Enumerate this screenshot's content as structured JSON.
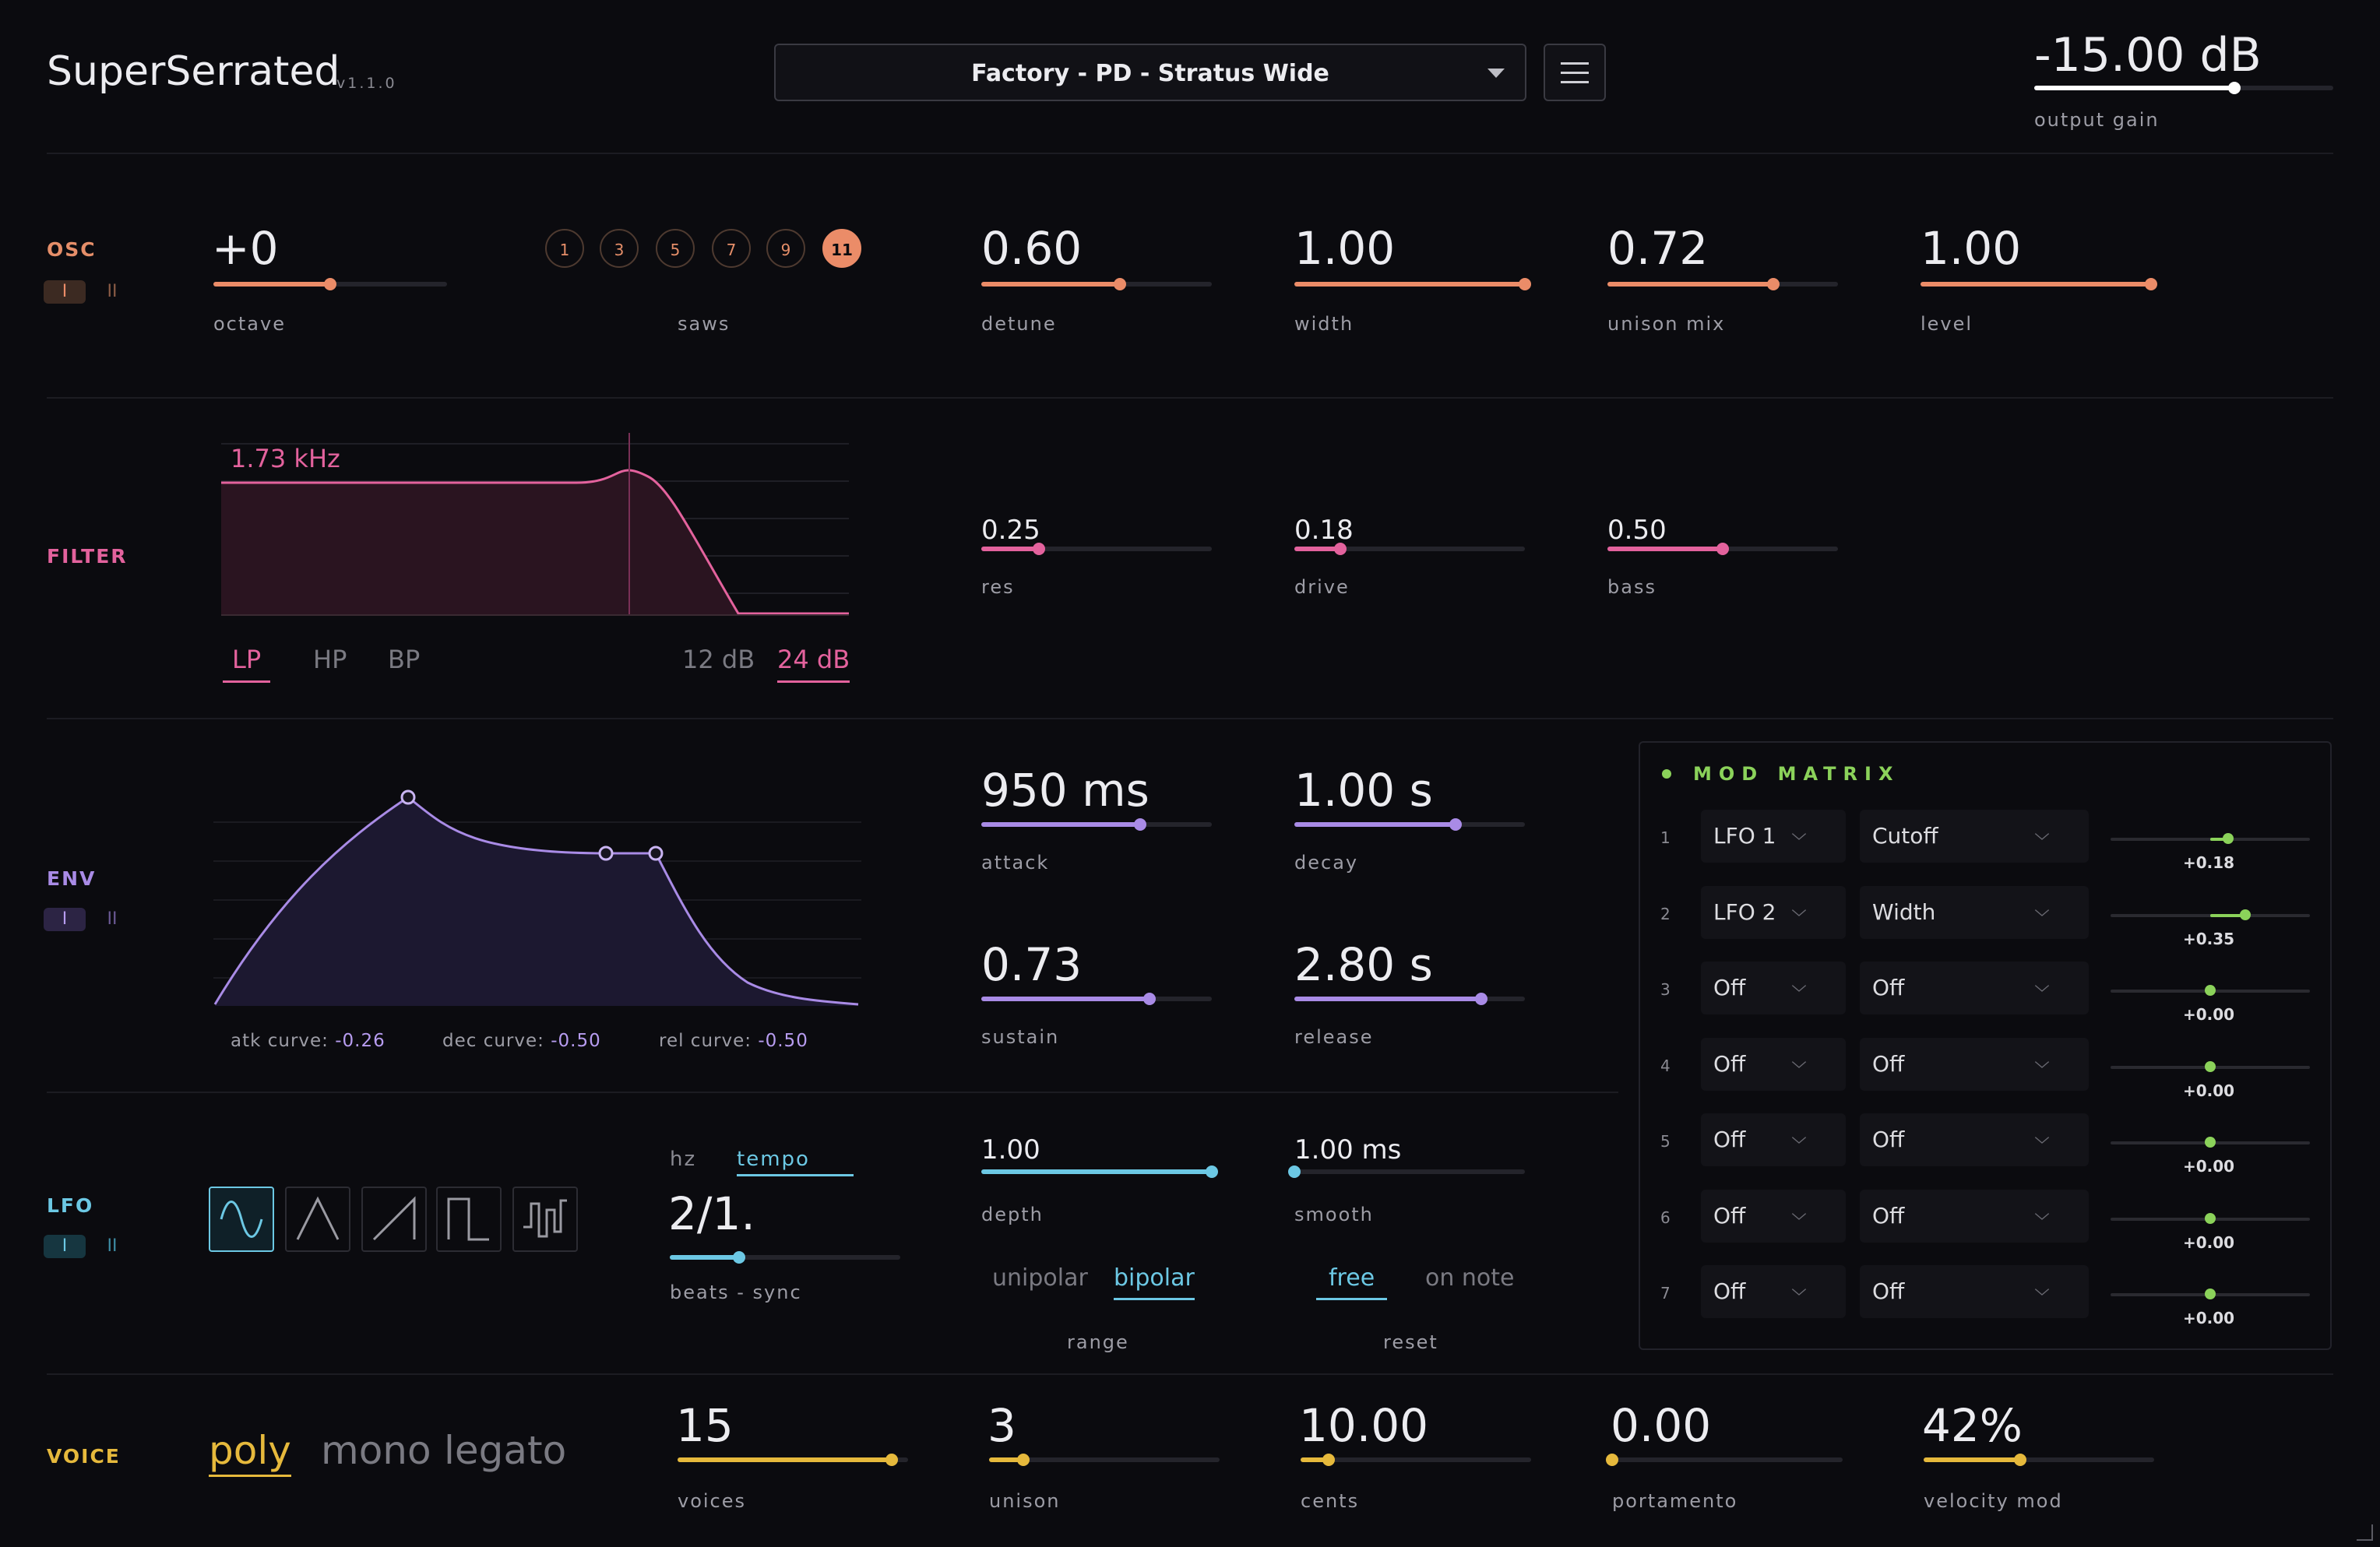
{
  "header": {
    "app_name": "SuperSerrated",
    "version": "v1.1.0",
    "preset": "Factory - PD - Stratus Wide",
    "output_gain_value": "-15.00 dB",
    "output_gain_label": "output gain",
    "output_gain_fraction": 0.67
  },
  "osc": {
    "label": "OSC",
    "tabs": [
      "I",
      "II"
    ],
    "octave": {
      "value": "+0",
      "label": "octave",
      "fraction": 0.5
    },
    "saws_label": "saws",
    "saws": [
      "1",
      "3",
      "5",
      "7",
      "9",
      "11"
    ],
    "saws_selected": "11",
    "detune": {
      "value": "0.60",
      "label": "detune",
      "fraction": 0.6
    },
    "width": {
      "value": "1.00",
      "label": "width",
      "fraction": 1.0
    },
    "unison_mix": {
      "value": "0.72",
      "label": "unison mix",
      "fraction": 0.72
    },
    "level": {
      "value": "1.00",
      "label": "level",
      "fraction": 1.0
    },
    "color": "#eb8c68"
  },
  "filter": {
    "label": "FILTER",
    "cutoff_readout": "1.73 kHz",
    "types": [
      "LP",
      "HP",
      "BP"
    ],
    "type_selected": "LP",
    "slopes": [
      "12 dB",
      "24 dB"
    ],
    "slope_selected": "24 dB",
    "res": {
      "value": "0.25",
      "label": "res",
      "fraction": 0.25
    },
    "drive": {
      "value": "0.18",
      "label": "drive",
      "fraction": 0.2
    },
    "bass": {
      "value": "0.50",
      "label": "bass",
      "fraction": 0.5
    },
    "color": "#e3629d"
  },
  "env": {
    "label": "ENV",
    "tabs": [
      "I",
      "II"
    ],
    "atk_curve_label": "atk curve:",
    "atk_curve_value": "-0.26",
    "dec_curve_label": "dec curve:",
    "dec_curve_value": "-0.50",
    "rel_curve_label": "rel curve:",
    "rel_curve_value": "-0.50",
    "attack": {
      "value": "950 ms",
      "label": "attack",
      "fraction": 0.69
    },
    "decay": {
      "value": "1.00 s",
      "label": "decay",
      "fraction": 0.7
    },
    "sustain": {
      "value": "0.73",
      "label": "sustain",
      "fraction": 0.73
    },
    "release": {
      "value": "2.80 s",
      "label": "release",
      "fraction": 0.81
    },
    "color": "#a98be6"
  },
  "lfo": {
    "label": "LFO",
    "tabs": [
      "I",
      "II"
    ],
    "waveforms": [
      "sine-wave-icon",
      "triangle-wave-icon",
      "saw-wave-icon",
      "square-wave-icon",
      "random-wave-icon"
    ],
    "waveform_selected": "sine-wave-icon",
    "rate_modes": [
      "hz",
      "tempo"
    ],
    "rate_mode_selected": "tempo",
    "rate": {
      "value": "2/1.",
      "label": "beats - sync",
      "fraction": 0.3
    },
    "depth": {
      "value": "1.00",
      "label": "depth",
      "fraction": 1.0
    },
    "smooth": {
      "value": "1.00 ms",
      "label": "smooth",
      "fraction": 0.0
    },
    "range_options": [
      "unipolar",
      "bipolar"
    ],
    "range_selected": "bipolar",
    "range_label": "range",
    "reset_options": [
      "free",
      "on note"
    ],
    "reset_selected": "free",
    "reset_label": "reset",
    "color": "#6cc8e4"
  },
  "mod_matrix": {
    "title": "MOD MATRIX",
    "rows": [
      {
        "num": "1",
        "source": "LFO 1",
        "target": "Cutoff",
        "amount": "+0.18",
        "fraction": 0.59
      },
      {
        "num": "2",
        "source": "LFO 2",
        "target": "Width",
        "amount": "+0.35",
        "fraction": 0.675
      },
      {
        "num": "3",
        "source": "Off",
        "target": "Off",
        "amount": "+0.00",
        "fraction": 0.5
      },
      {
        "num": "4",
        "source": "Off",
        "target": "Off",
        "amount": "+0.00",
        "fraction": 0.5
      },
      {
        "num": "5",
        "source": "Off",
        "target": "Off",
        "amount": "+0.00",
        "fraction": 0.5
      },
      {
        "num": "6",
        "source": "Off",
        "target": "Off",
        "amount": "+0.00",
        "fraction": 0.5
      },
      {
        "num": "7",
        "source": "Off",
        "target": "Off",
        "amount": "+0.00",
        "fraction": 0.5
      }
    ],
    "color": "#8bd25a"
  },
  "voice": {
    "label": "VOICE",
    "modes": [
      "poly",
      "mono",
      "legato"
    ],
    "mode_selected": "poly",
    "voices": {
      "value": "15",
      "label": "voices",
      "fraction": 0.93
    },
    "unison": {
      "value": "3",
      "label": "unison",
      "fraction": 0.15
    },
    "cents": {
      "value": "10.00",
      "label": "cents",
      "fraction": 0.12
    },
    "portamento": {
      "value": "0.00",
      "label": "portamento",
      "fraction": 0.0
    },
    "velocity_mod": {
      "value": "42%",
      "label": "velocity mod",
      "fraction": 0.42
    },
    "color": "#e6b93c"
  }
}
